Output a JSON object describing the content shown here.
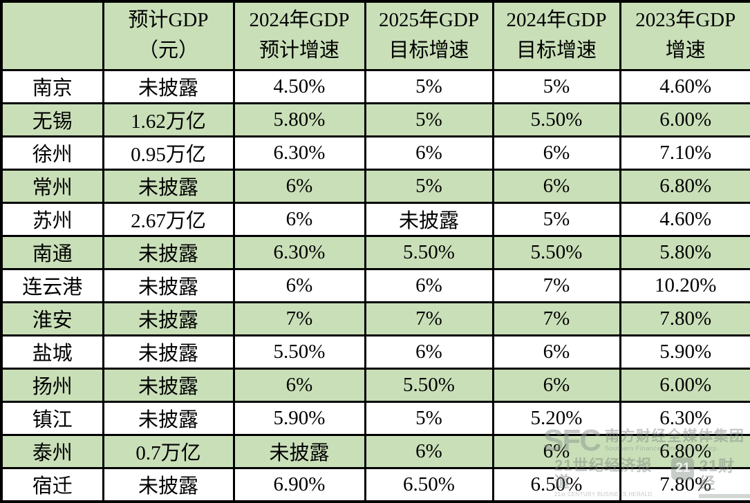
{
  "table": {
    "corner_label": "",
    "columns": [
      {
        "line1": "预计GDP",
        "line2": "（元）"
      },
      {
        "line1": "2024年GDP",
        "line2": "预计增速"
      },
      {
        "line1": "2025年GDP",
        "line2": "目标增速"
      },
      {
        "line1": "2024年GDP",
        "line2": "目标增速"
      },
      {
        "line1": "2023年GDP",
        "line2": "增速"
      }
    ],
    "rows": [
      {
        "city": "南京",
        "cells": [
          "未披露",
          "4.50%",
          "5%",
          "5%",
          "4.60%"
        ]
      },
      {
        "city": "无锡",
        "cells": [
          "1.62万亿",
          "5.80%",
          "5%",
          "5.50%",
          "6.00%"
        ]
      },
      {
        "city": "徐州",
        "cells": [
          "0.95万亿",
          "6.30%",
          "6%",
          "6%",
          "7.10%"
        ]
      },
      {
        "city": "常州",
        "cells": [
          "未披露",
          "6%",
          "5%",
          "6%",
          "6.80%"
        ]
      },
      {
        "city": "苏州",
        "cells": [
          "2.67万亿",
          "6%",
          "未披露",
          "5%",
          "4.60%"
        ]
      },
      {
        "city": "南通",
        "cells": [
          "未披露",
          "6.30%",
          "5.50%",
          "5.50%",
          "5.80%"
        ]
      },
      {
        "city": "连云港",
        "cells": [
          "未披露",
          "6%",
          "6%",
          "7%",
          "10.20%"
        ]
      },
      {
        "city": "淮安",
        "cells": [
          "未披露",
          "7%",
          "7%",
          "7%",
          "7.80%"
        ]
      },
      {
        "city": "盐城",
        "cells": [
          "未披露",
          "5.50%",
          "6%",
          "6%",
          "5.90%"
        ]
      },
      {
        "city": "扬州",
        "cells": [
          "未披露",
          "6%",
          "5.50%",
          "6%",
          "6.00%"
        ]
      },
      {
        "city": "镇江",
        "cells": [
          "未披露",
          "5.90%",
          "5%",
          "5.20%",
          "6.30%"
        ]
      },
      {
        "city": "泰州",
        "cells": [
          "0.7万亿",
          "未披露",
          "6%",
          "6%",
          "6.80%"
        ]
      },
      {
        "city": "宿迁",
        "cells": [
          "未披露",
          "6.90%",
          "6.50%",
          "6.50%",
          "7.80%"
        ]
      }
    ]
  },
  "chart_data": {
    "type": "table",
    "title": "",
    "categories": [
      "南京",
      "无锡",
      "徐州",
      "常州",
      "苏州",
      "南通",
      "连云港",
      "淮安",
      "盐城",
      "扬州",
      "镇江",
      "泰州",
      "宿迁"
    ],
    "series": [
      {
        "name": "预计GDP（元）",
        "values": [
          "未披露",
          "1.62万亿",
          "0.95万亿",
          "未披露",
          "2.67万亿",
          "未披露",
          "未披露",
          "未披露",
          "未披露",
          "未披露",
          "未披露",
          "0.7万亿",
          "未披露"
        ]
      },
      {
        "name": "2024年GDP预计增速",
        "values": [
          "4.50%",
          "5.80%",
          "6.30%",
          "6%",
          "6%",
          "6.30%",
          "6%",
          "7%",
          "5.50%",
          "6%",
          "5.90%",
          "未披露",
          "6.90%"
        ]
      },
      {
        "name": "2025年GDP目标增速",
        "values": [
          "5%",
          "5%",
          "6%",
          "5%",
          "未披露",
          "5.50%",
          "6%",
          "7%",
          "6%",
          "5.50%",
          "5%",
          "6%",
          "6.50%"
        ]
      },
      {
        "name": "2024年GDP目标增速",
        "values": [
          "5%",
          "5.50%",
          "6%",
          "6%",
          "5%",
          "5.50%",
          "7%",
          "7%",
          "6%",
          "6%",
          "5.20%",
          "6%",
          "6.50%"
        ]
      },
      {
        "name": "2023年GDP增速",
        "values": [
          "4.60%",
          "6.00%",
          "7.10%",
          "6.80%",
          "4.60%",
          "5.80%",
          "10.20%",
          "7.80%",
          "5.90%",
          "6.00%",
          "6.30%",
          "6.80%",
          "7.80%"
        ]
      }
    ],
    "layout": {
      "striped_rows": true,
      "stripe_color": "#c9dfb8",
      "grid": "black 3px borders"
    }
  },
  "colors": {
    "stripe_green": "#c9dfb8",
    "row_white": "#ffffff",
    "border_black": "#000000",
    "text_black": "#000000"
  },
  "watermark": {
    "sfc": "SFC",
    "group_cn": "南方财经全媒体集团",
    "group_en": "Southern Finance Omnimedia Corp.",
    "herald_cn": "21世纪经济报道",
    "herald_en": "21st CENTURY BUSINESS HERALD",
    "logo_21": "21",
    "fin_cn": "21财经"
  }
}
